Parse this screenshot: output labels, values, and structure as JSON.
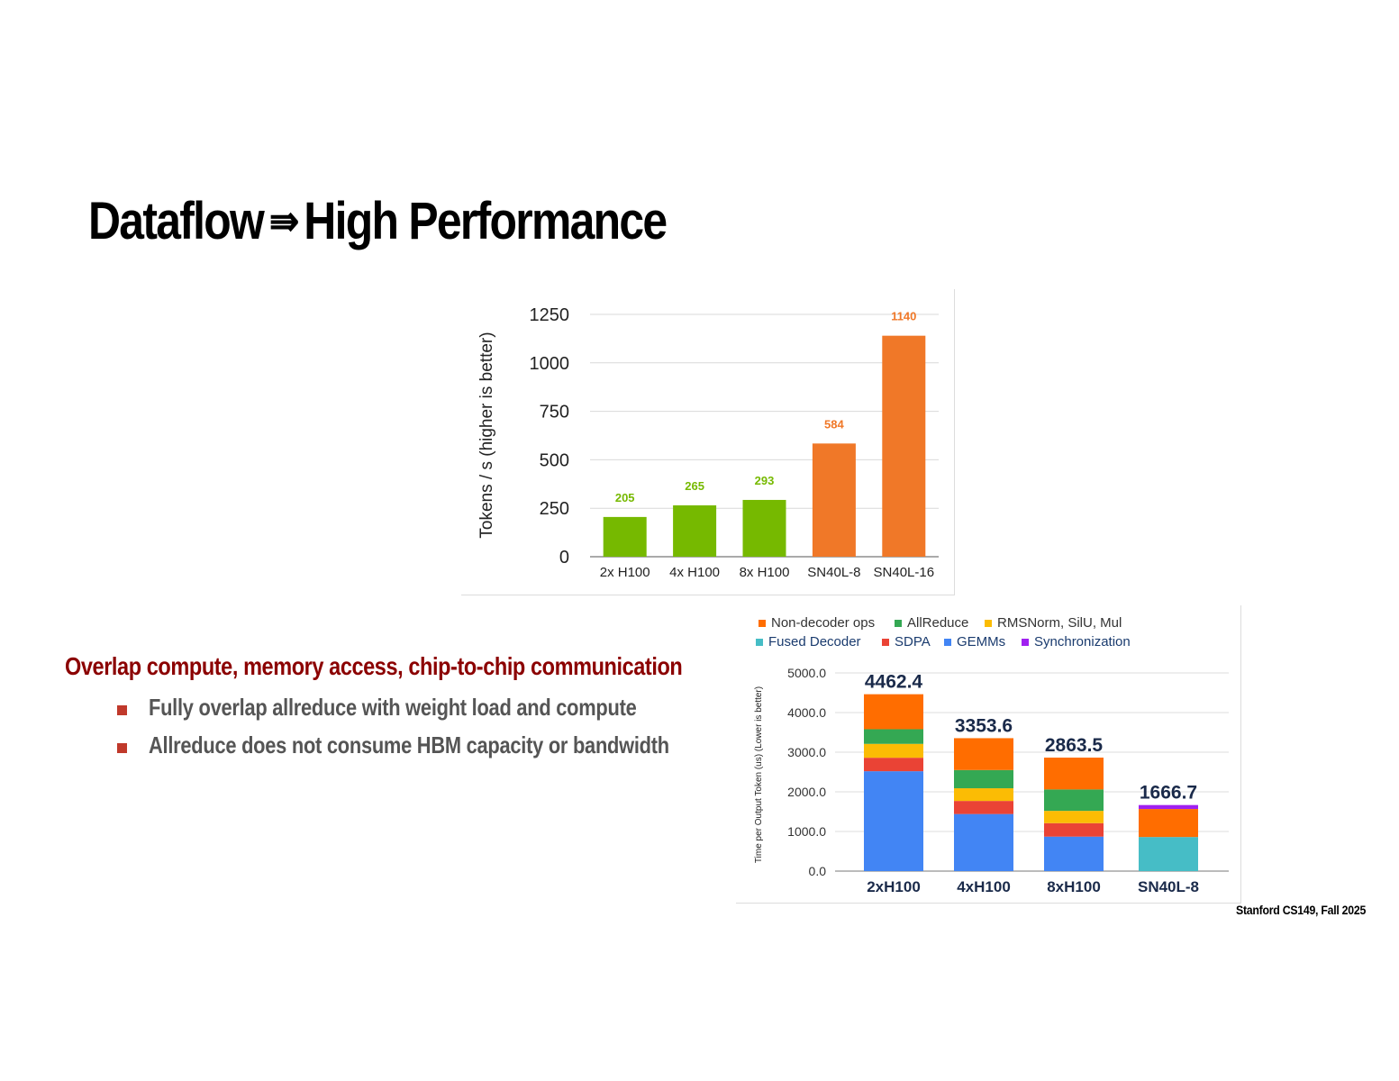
{
  "slide": {
    "title_left": "Dataflow",
    "title_arrow": "⇛",
    "title_right": "High Performance",
    "subheading": "Overlap compute, memory access, chip-to-chip communication",
    "bullets": [
      "Fully overlap allreduce with weight load and compute",
      "Allreduce does not consume HBM capacity or bandwidth"
    ],
    "footer": "Stanford CS149, Fall 2025"
  },
  "chart_data": [
    {
      "type": "bar",
      "title": "",
      "ylabel": "Tokens / s (higher is better)",
      "xlabel": "",
      "categories": [
        "2x H100",
        "4x H100",
        "8x H100",
        "SN40L-8",
        "SN40L-16"
      ],
      "values": [
        205,
        265,
        293,
        584,
        1140
      ],
      "data_labels": [
        "205",
        "265",
        "293",
        "584",
        "1140"
      ],
      "bar_colors": [
        "#76b900",
        "#76b900",
        "#76b900",
        "#f07828",
        "#f07828"
      ],
      "label_colors": [
        "#76b900",
        "#76b900",
        "#76b900",
        "#f07828",
        "#f07828"
      ],
      "ylim": [
        0,
        1250
      ],
      "yticks": [
        "0",
        "250",
        "500",
        "750",
        "1000",
        "1250"
      ],
      "grid": true
    },
    {
      "type": "bar",
      "stacked": true,
      "title": "",
      "ylabel": "Time per Output Token (us) (Lower is better)",
      "xlabel": "",
      "categories": [
        "2xH100",
        "4xH100",
        "8xH100",
        "SN40L-8"
      ],
      "totals": [
        "4462.4",
        "3353.6",
        "2863.5",
        "1666.7"
      ],
      "ylim": [
        0,
        5000
      ],
      "yticks": [
        "0.0",
        "1000.0",
        "2000.0",
        "3000.0",
        "4000.0",
        "5000.0"
      ],
      "grid": true,
      "legend_position": "top",
      "legend": [
        {
          "name": "Non-decoder ops",
          "color": "#ff6d00"
        },
        {
          "name": "AllReduce",
          "color": "#34a853"
        },
        {
          "name": "RMSNorm, SilU, Mul",
          "color": "#fbbc04"
        },
        {
          "name": "Fused Decoder",
          "color": "#46bdc6"
        },
        {
          "name": "SDPA",
          "color": "#ea4335"
        },
        {
          "name": "GEMMs",
          "color": "#4285f4"
        },
        {
          "name": "Synchronization",
          "color": "#a020f0"
        }
      ],
      "series": [
        {
          "name": "GEMMs",
          "color": "#4285f4",
          "values": [
            2520,
            1440,
            870,
            0
          ]
        },
        {
          "name": "SDPA",
          "color": "#ea4335",
          "values": [
            340,
            330,
            340,
            0
          ]
        },
        {
          "name": "Fused Decoder",
          "color": "#46bdc6",
          "values": [
            0,
            0,
            0,
            860
          ]
        },
        {
          "name": "RMSNorm, SilU, Mul",
          "color": "#fbbc04",
          "values": [
            350,
            320,
            310,
            0
          ]
        },
        {
          "name": "AllReduce",
          "color": "#34a853",
          "values": [
            370,
            460,
            540,
            0
          ]
        },
        {
          "name": "Non-decoder ops",
          "color": "#ff6d00",
          "values": [
            882.4,
            803.6,
            803.5,
            706.7
          ]
        },
        {
          "name": "Synchronization",
          "color": "#a020f0",
          "values": [
            0,
            0,
            0,
            100
          ]
        }
      ]
    }
  ]
}
